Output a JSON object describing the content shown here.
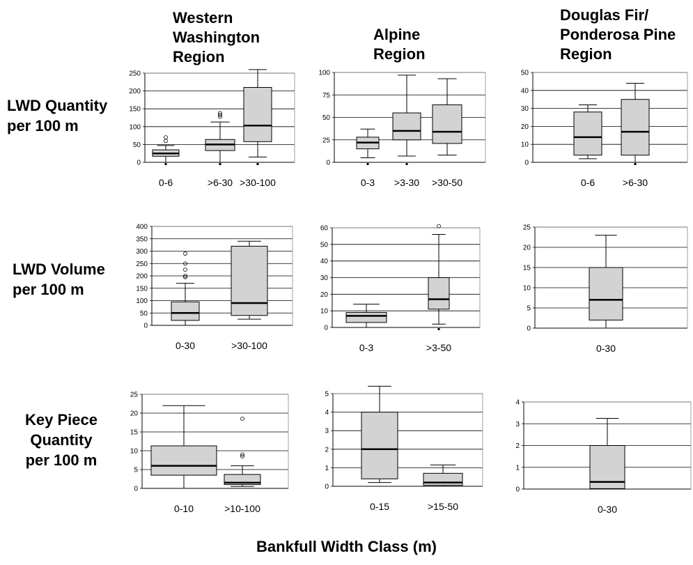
{
  "column_headers": [
    "Western\nWashington\nRegion",
    "Alpine\nRegion",
    "Douglas Fir/\nPonderosa Pine\nRegion"
  ],
  "row_headers": [
    "LWD Quantity\nper 100 m",
    "LWD Volume\nper 100 m",
    "Key Piece\nQuantity\nper 100 m"
  ],
  "x_axis_title": "Bankfull Width Class (m)",
  "chart_data": [
    {
      "type": "box",
      "panel": "western-washington-lwd-quantity",
      "ylim": [
        0,
        250
      ],
      "yticks": [
        0,
        50,
        100,
        150,
        200,
        250
      ],
      "grid": true,
      "categories": [
        "0-6",
        ">6-30",
        ">30-100"
      ],
      "boxes": [
        {
          "min": 0,
          "q1": 17,
          "median": 25,
          "q3": 35,
          "max": 47,
          "outliers": [
            60,
            70,
            0
          ]
        },
        {
          "min": 0,
          "q1": 33,
          "median": 50,
          "q3": 64,
          "max": 113,
          "outliers": [
            128,
            133,
            138,
            0
          ]
        },
        {
          "min": 15,
          "q1": 58,
          "median": 103,
          "q3": 210,
          "max": 260,
          "outliers": [
            0
          ]
        }
      ]
    },
    {
      "type": "box",
      "panel": "alpine-lwd-quantity",
      "ylim": [
        0,
        100
      ],
      "yticks": [
        0,
        25,
        50,
        75,
        100
      ],
      "grid": true,
      "categories": [
        "0-3",
        ">3-30",
        ">30-50"
      ],
      "boxes": [
        {
          "min": 5,
          "q1": 15,
          "median": 22,
          "q3": 28,
          "max": 37,
          "outliers": [
            0
          ]
        },
        {
          "min": 7,
          "q1": 25,
          "median": 35,
          "q3": 55,
          "max": 97,
          "outliers": [
            0
          ]
        },
        {
          "min": 8,
          "q1": 21,
          "median": 34,
          "q3": 64,
          "max": 93,
          "outliers": []
        }
      ]
    },
    {
      "type": "box",
      "panel": "douglas-fir-lwd-quantity",
      "ylim": [
        0,
        50
      ],
      "yticks": [
        0,
        10,
        20,
        30,
        40,
        50
      ],
      "grid": true,
      "categories": [
        "0-6",
        ">6-30"
      ],
      "boxes": [
        {
          "min": 2,
          "q1": 4,
          "median": 14,
          "q3": 28,
          "max": 32,
          "outliers": []
        },
        {
          "min": 0,
          "q1": 4,
          "median": 17,
          "q3": 35,
          "max": 44,
          "outliers": [
            0
          ]
        }
      ]
    },
    {
      "type": "box",
      "panel": "western-washington-lwd-volume",
      "ylim": [
        0,
        400
      ],
      "yticks": [
        0,
        50,
        100,
        150,
        200,
        250,
        300,
        350,
        400
      ],
      "grid": true,
      "categories": [
        "0-30",
        ">30-100"
      ],
      "boxes": [
        {
          "min": 0,
          "q1": 20,
          "median": 50,
          "q3": 95,
          "max": 170,
          "outliers": [
            195,
            200,
            225,
            250,
            290
          ]
        },
        {
          "min": 25,
          "q1": 40,
          "median": 90,
          "q3": 320,
          "max": 340,
          "outliers": []
        }
      ]
    },
    {
      "type": "box",
      "panel": "alpine-lwd-volume",
      "ylim": [
        0,
        60
      ],
      "yticks": [
        0,
        10,
        20,
        30,
        40,
        50,
        60
      ],
      "grid": true,
      "categories": [
        "0-3",
        ">3-50"
      ],
      "boxes": [
        {
          "min": 0,
          "q1": 3,
          "median": 7,
          "q3": 9,
          "max": 14,
          "outliers": []
        },
        {
          "min": 2,
          "q1": 11,
          "median": 17,
          "q3": 30,
          "max": 56,
          "outliers": [
            61,
            0
          ]
        }
      ]
    },
    {
      "type": "box",
      "panel": "douglas-fir-lwd-volume",
      "ylim": [
        0,
        25
      ],
      "yticks": [
        0,
        5,
        10,
        15,
        20,
        25
      ],
      "grid": true,
      "categories": [
        "0-30"
      ],
      "boxes": [
        {
          "min": 0,
          "q1": 2,
          "median": 7,
          "q3": 15,
          "max": 23,
          "outliers": []
        }
      ]
    },
    {
      "type": "box",
      "panel": "western-washington-key-piece",
      "ylim": [
        0,
        25
      ],
      "yticks": [
        0,
        5,
        10,
        15,
        20,
        25
      ],
      "grid": true,
      "categories": [
        "0-10",
        ">10-100"
      ],
      "boxes": [
        {
          "min": 0,
          "q1": 3.5,
          "median": 6,
          "q3": 11.3,
          "max": 22,
          "outliers": []
        },
        {
          "min": 0.5,
          "q1": 1,
          "median": 1.5,
          "q3": 3.7,
          "max": 6,
          "outliers": [
            8.5,
            9,
            18.5
          ]
        }
      ]
    },
    {
      "type": "box",
      "panel": "alpine-key-piece",
      "ylim": [
        0,
        5
      ],
      "yticks": [
        0,
        1,
        2,
        3,
        4,
        5
      ],
      "grid": true,
      "categories": [
        "0-15",
        ">15-50"
      ],
      "boxes": [
        {
          "min": 0.2,
          "q1": 0.4,
          "median": 2,
          "q3": 4,
          "max": 5.4,
          "outliers": []
        },
        {
          "min": 0,
          "q1": 0.05,
          "median": 0.2,
          "q3": 0.7,
          "max": 1.15,
          "outliers": []
        }
      ]
    },
    {
      "type": "box",
      "panel": "douglas-fir-key-piece",
      "ylim": [
        0,
        4
      ],
      "yticks": [
        0,
        1,
        2,
        3,
        4
      ],
      "grid": true,
      "categories": [
        "0-30"
      ],
      "boxes": [
        {
          "min": 0,
          "q1": 0.02,
          "median": 0.33,
          "q3": 2,
          "max": 3.25,
          "outliers": []
        }
      ]
    }
  ]
}
